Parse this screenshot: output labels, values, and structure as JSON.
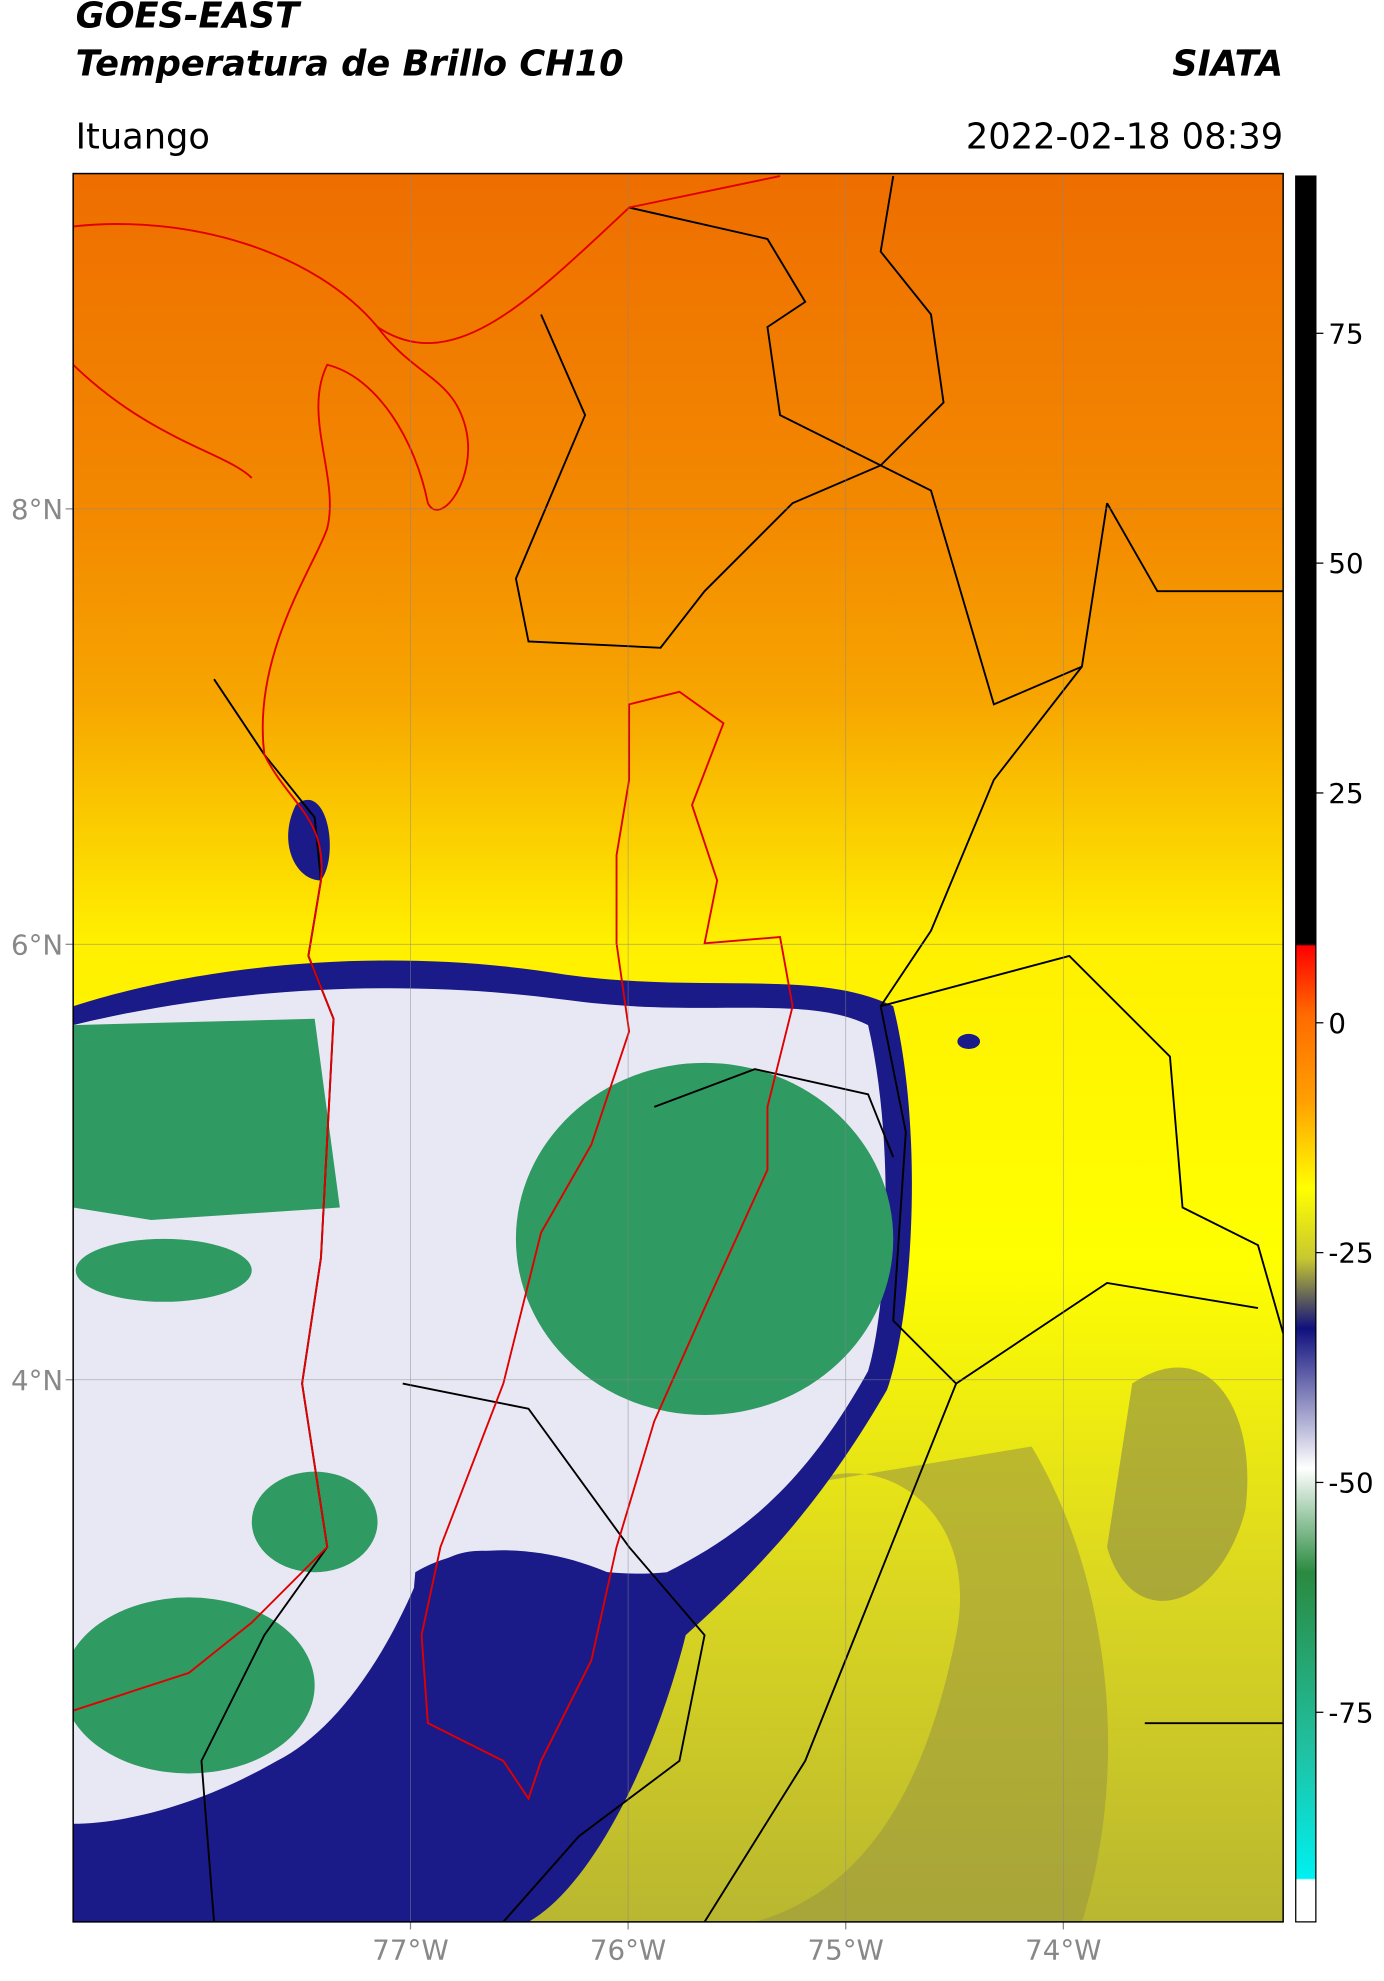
{
  "header": {
    "title": "GOES-EAST",
    "subtitle": "Temperatura de Brillo CH10",
    "source": "SIATA",
    "location": "Ituango",
    "timestamp": "2022-02-18 08:39"
  },
  "map": {
    "lonlim": [
      -78.55,
      -72.99
    ],
    "latlim": [
      1.51,
      9.54
    ],
    "grid": true,
    "lon_ticks": [
      {
        "value": -77,
        "label": "77°W"
      },
      {
        "value": -76,
        "label": "76°W"
      },
      {
        "value": -75,
        "label": "75°W"
      },
      {
        "value": -74,
        "label": "74°W"
      }
    ],
    "lat_ticks": [
      {
        "value": 8,
        "label": "8°N"
      },
      {
        "value": 6,
        "label": "6°N"
      },
      {
        "value": 4,
        "label": "4°N"
      }
    ]
  },
  "colorbar": {
    "lim": [
      -97.8,
      92.1
    ],
    "ticks": [
      -75,
      -50,
      -25,
      0,
      25,
      50,
      75
    ]
  }
}
